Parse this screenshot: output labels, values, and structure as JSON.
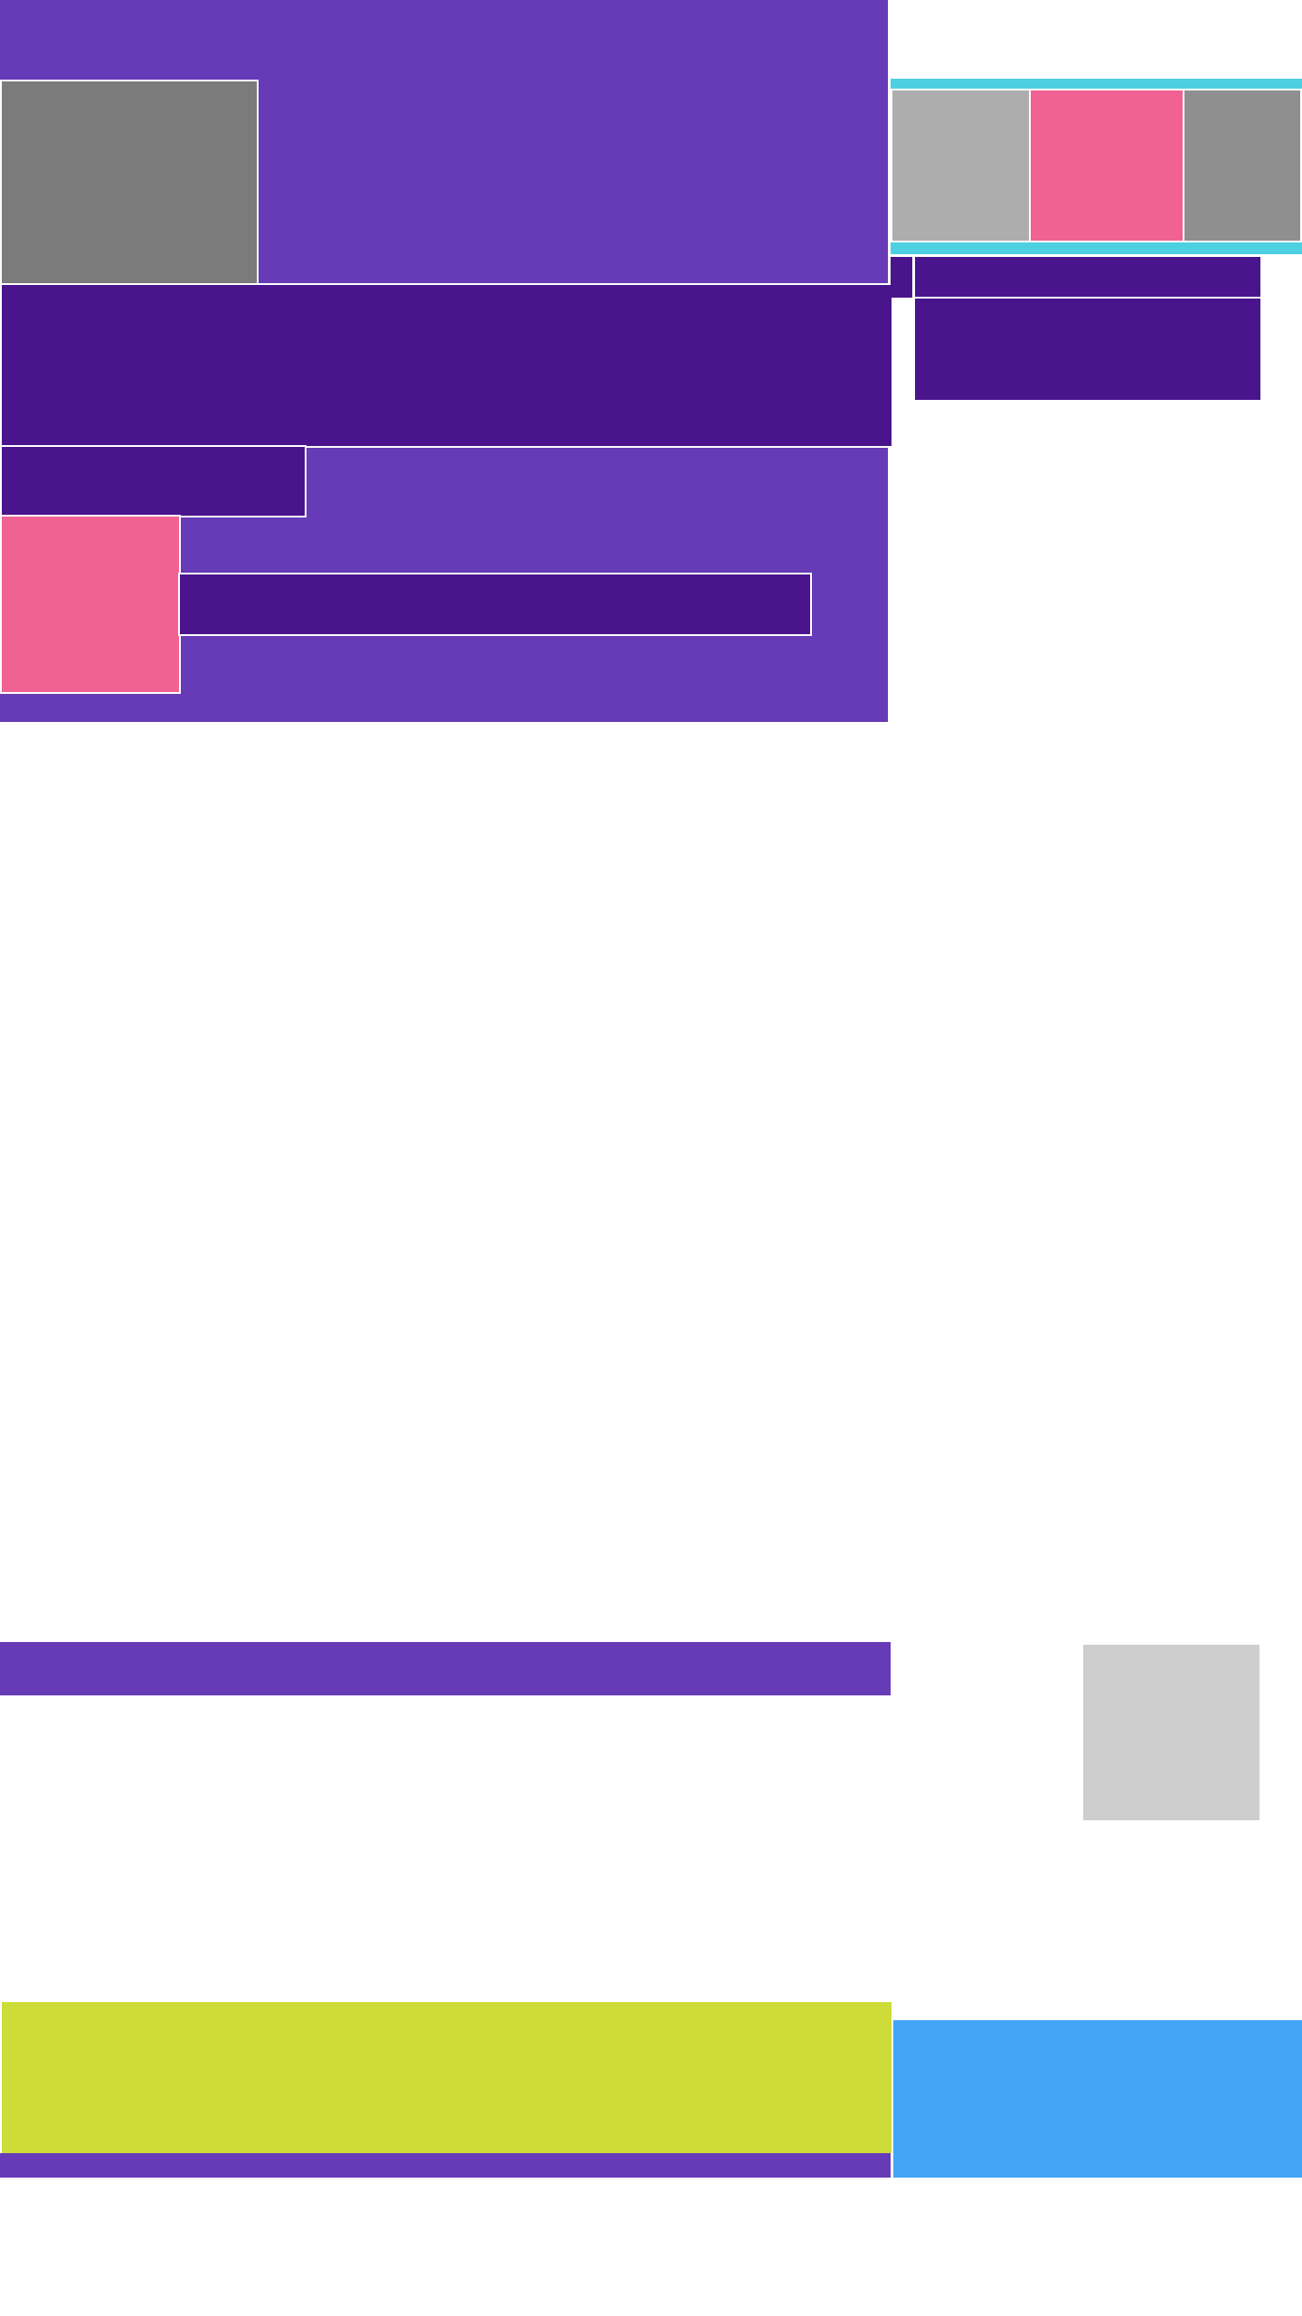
{
  "page": {
    "background": "#ffffff"
  },
  "palette": {
    "purple": "#673ab7",
    "deep_purple": "#4a148c",
    "pink": "#f06292",
    "grey_dark": "#7b7b7b",
    "grey_mid": "#8f8f8f",
    "grey_light": "#adadad",
    "grey_lighter": "#cecece",
    "cyan": "#4dd0e1",
    "lime": "#cddc39",
    "blue": "#42a5f5"
  }
}
